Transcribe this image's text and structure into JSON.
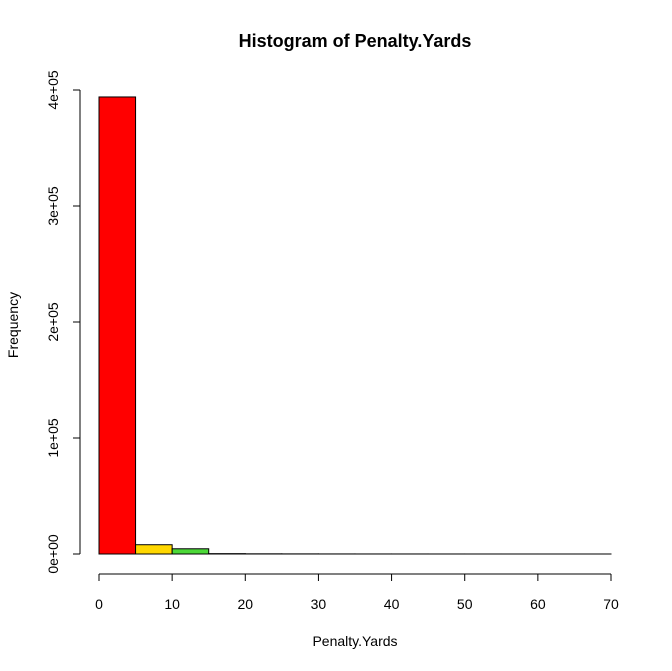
{
  "chart_data": {
    "type": "bar",
    "title": "Histogram of Penalty.Yards",
    "xlabel": "Penalty.Yards",
    "ylabel": "Frequency",
    "xlim": [
      0,
      70
    ],
    "ylim": [
      0,
      400000
    ],
    "x_ticks": [
      "0",
      "10",
      "20",
      "30",
      "40",
      "50",
      "60",
      "70"
    ],
    "y_ticks": [
      "0e+00",
      "1e+05",
      "2e+05",
      "3e+05",
      "4e+05"
    ],
    "bins": [
      {
        "from": 0,
        "to": 5,
        "count": 394000,
        "color": "#ff0000"
      },
      {
        "from": 5,
        "to": 10,
        "count": 8000,
        "color": "#ffd700"
      },
      {
        "from": 10,
        "to": 15,
        "count": 4500,
        "color": "#4cd838"
      },
      {
        "from": 15,
        "to": 20,
        "count": 300,
        "color": "#ffffff"
      },
      {
        "from": 20,
        "to": 25,
        "count": 150,
        "color": "#ffffff"
      },
      {
        "from": 25,
        "to": 30,
        "count": 100,
        "color": "#ffffff"
      },
      {
        "from": 30,
        "to": 35,
        "count": 60,
        "color": "#ffffff"
      },
      {
        "from": 35,
        "to": 40,
        "count": 40,
        "color": "#ffffff"
      },
      {
        "from": 40,
        "to": 45,
        "count": 30,
        "color": "#ffffff"
      },
      {
        "from": 45,
        "to": 50,
        "count": 20,
        "color": "#ffffff"
      },
      {
        "from": 50,
        "to": 55,
        "count": 10,
        "color": "#ffffff"
      },
      {
        "from": 55,
        "to": 60,
        "count": 8,
        "color": "#ffffff"
      },
      {
        "from": 60,
        "to": 65,
        "count": 5,
        "color": "#ffffff"
      },
      {
        "from": 65,
        "to": 70,
        "count": 3,
        "color": "#ffffff"
      }
    ],
    "grid": false,
    "legend": "none"
  }
}
